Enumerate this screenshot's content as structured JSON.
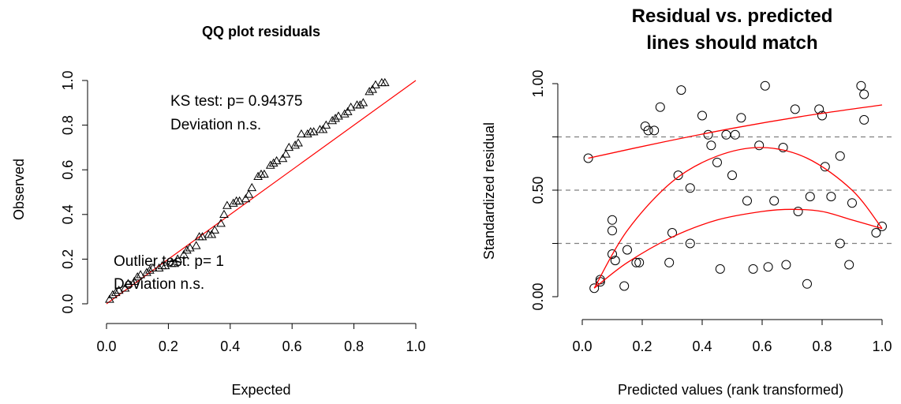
{
  "chart_data": [
    {
      "type": "scatter",
      "title": "QQ plot residuals",
      "xlabel": "Expected",
      "ylabel": "Observed",
      "xlim": [
        0,
        1
      ],
      "ylim": [
        0,
        1
      ],
      "xticks": [
        "0.0",
        "0.2",
        "0.4",
        "0.6",
        "0.8",
        "1.0"
      ],
      "yticks": [
        "0.0",
        "0.2",
        "0.4",
        "0.6",
        "0.8",
        "1.0"
      ],
      "annotations": {
        "ks": "KS test: p= 0.94375",
        "ks_dev": "Deviation  n.s.",
        "outlier": "Outlier test: p= 1",
        "outlier_dev": "Deviation  n.s."
      },
      "reference_line": {
        "from": [
          0,
          0
        ],
        "to": [
          1,
          1
        ],
        "color": "#ff0000"
      },
      "marker": "triangle",
      "points": [
        [
          0.01,
          0.02
        ],
        [
          0.02,
          0.04
        ],
        [
          0.03,
          0.05
        ],
        [
          0.04,
          0.06
        ],
        [
          0.06,
          0.07
        ],
        [
          0.07,
          0.09
        ],
        [
          0.09,
          0.1
        ],
        [
          0.1,
          0.12
        ],
        [
          0.11,
          0.13
        ],
        [
          0.13,
          0.14
        ],
        [
          0.14,
          0.15
        ],
        [
          0.15,
          0.16
        ],
        [
          0.17,
          0.16
        ],
        [
          0.18,
          0.17
        ],
        [
          0.19,
          0.17
        ],
        [
          0.21,
          0.18
        ],
        [
          0.22,
          0.18
        ],
        [
          0.23,
          0.2
        ],
        [
          0.25,
          0.22
        ],
        [
          0.26,
          0.24
        ],
        [
          0.27,
          0.25
        ],
        [
          0.29,
          0.26
        ],
        [
          0.3,
          0.3
        ],
        [
          0.31,
          0.3
        ],
        [
          0.33,
          0.31
        ],
        [
          0.34,
          0.31
        ],
        [
          0.35,
          0.33
        ],
        [
          0.37,
          0.36
        ],
        [
          0.38,
          0.4
        ],
        [
          0.39,
          0.44
        ],
        [
          0.41,
          0.45
        ],
        [
          0.42,
          0.46
        ],
        [
          0.43,
          0.46
        ],
        [
          0.45,
          0.47
        ],
        [
          0.46,
          0.49
        ],
        [
          0.47,
          0.52
        ],
        [
          0.49,
          0.57
        ],
        [
          0.5,
          0.58
        ],
        [
          0.51,
          0.58
        ],
        [
          0.53,
          0.62
        ],
        [
          0.54,
          0.63
        ],
        [
          0.55,
          0.64
        ],
        [
          0.57,
          0.65
        ],
        [
          0.58,
          0.67
        ],
        [
          0.59,
          0.7
        ],
        [
          0.61,
          0.71
        ],
        [
          0.62,
          0.72
        ],
        [
          0.63,
          0.76
        ],
        [
          0.65,
          0.76
        ],
        [
          0.66,
          0.77
        ],
        [
          0.67,
          0.77
        ],
        [
          0.69,
          0.78
        ],
        [
          0.7,
          0.78
        ],
        [
          0.71,
          0.8
        ],
        [
          0.73,
          0.82
        ],
        [
          0.74,
          0.83
        ],
        [
          0.75,
          0.84
        ],
        [
          0.77,
          0.85
        ],
        [
          0.78,
          0.86
        ],
        [
          0.79,
          0.88
        ],
        [
          0.81,
          0.89
        ],
        [
          0.82,
          0.89
        ],
        [
          0.83,
          0.9
        ],
        [
          0.85,
          0.95
        ],
        [
          0.86,
          0.96
        ],
        [
          0.87,
          0.98
        ],
        [
          0.89,
          0.99
        ],
        [
          0.9,
          0.99
        ]
      ]
    },
    {
      "type": "scatter",
      "title": [
        "Residual vs. predicted",
        "lines should match"
      ],
      "xlabel": "Predicted values (rank transformed)",
      "ylabel": "Standardized residual",
      "xlim": [
        0,
        1
      ],
      "ylim": [
        0,
        1
      ],
      "xticks": [
        "0.0",
        "0.2",
        "0.4",
        "0.6",
        "0.8",
        "1.0"
      ],
      "yticks": [
        "0.00",
        "0.50",
        "1.00"
      ],
      "reference_lines_y": [
        0.25,
        0.5,
        0.75
      ],
      "marker": "circle",
      "points": [
        [
          0.02,
          0.65
        ],
        [
          0.04,
          0.04
        ],
        [
          0.06,
          0.08
        ],
        [
          0.06,
          0.07
        ],
        [
          0.1,
          0.36
        ],
        [
          0.1,
          0.31
        ],
        [
          0.1,
          0.2
        ],
        [
          0.11,
          0.17
        ],
        [
          0.14,
          0.05
        ],
        [
          0.15,
          0.22
        ],
        [
          0.18,
          0.16
        ],
        [
          0.19,
          0.16
        ],
        [
          0.21,
          0.8
        ],
        [
          0.22,
          0.78
        ],
        [
          0.24,
          0.78
        ],
        [
          0.26,
          0.89
        ],
        [
          0.29,
          0.16
        ],
        [
          0.3,
          0.3
        ],
        [
          0.32,
          0.57
        ],
        [
          0.33,
          0.97
        ],
        [
          0.36,
          0.51
        ],
        [
          0.36,
          0.25
        ],
        [
          0.4,
          0.85
        ],
        [
          0.42,
          0.76
        ],
        [
          0.43,
          0.71
        ],
        [
          0.45,
          0.63
        ],
        [
          0.46,
          0.13
        ],
        [
          0.48,
          0.76
        ],
        [
          0.5,
          0.57
        ],
        [
          0.51,
          0.76
        ],
        [
          0.53,
          0.84
        ],
        [
          0.55,
          0.45
        ],
        [
          0.57,
          0.13
        ],
        [
          0.59,
          0.71
        ],
        [
          0.61,
          0.99
        ],
        [
          0.62,
          0.14
        ],
        [
          0.64,
          0.45
        ],
        [
          0.67,
          0.7
        ],
        [
          0.68,
          0.15
        ],
        [
          0.71,
          0.88
        ],
        [
          0.72,
          0.4
        ],
        [
          0.75,
          0.06
        ],
        [
          0.76,
          0.47
        ],
        [
          0.79,
          0.88
        ],
        [
          0.8,
          0.85
        ],
        [
          0.81,
          0.61
        ],
        [
          0.83,
          0.47
        ],
        [
          0.86,
          0.66
        ],
        [
          0.86,
          0.25
        ],
        [
          0.89,
          0.15
        ],
        [
          0.9,
          0.44
        ],
        [
          0.93,
          0.99
        ],
        [
          0.94,
          0.95
        ],
        [
          0.94,
          0.83
        ],
        [
          0.98,
          0.3
        ],
        [
          1.0,
          0.33
        ]
      ],
      "quantile_curves": [
        {
          "name": "q0.75",
          "color": "#ff0000",
          "points": [
            [
              0.02,
              0.65
            ],
            [
              0.25,
              0.72
            ],
            [
              0.5,
              0.79
            ],
            [
              0.75,
              0.85
            ],
            [
              1.0,
              0.9
            ]
          ]
        },
        {
          "name": "q0.5",
          "color": "#ff0000",
          "points": [
            [
              0.04,
              0.04
            ],
            [
              0.15,
              0.31
            ],
            [
              0.3,
              0.54
            ],
            [
              0.45,
              0.66
            ],
            [
              0.6,
              0.7
            ],
            [
              0.75,
              0.65
            ],
            [
              0.9,
              0.5
            ],
            [
              1.0,
              0.32
            ]
          ]
        },
        {
          "name": "q0.25",
          "color": "#ff0000",
          "points": [
            [
              0.04,
              0.04
            ],
            [
              0.15,
              0.16
            ],
            [
              0.3,
              0.28
            ],
            [
              0.45,
              0.36
            ],
            [
              0.6,
              0.4
            ],
            [
              0.7,
              0.41
            ],
            [
              0.8,
              0.4
            ],
            [
              0.9,
              0.36
            ],
            [
              1.0,
              0.32
            ]
          ]
        }
      ]
    }
  ]
}
